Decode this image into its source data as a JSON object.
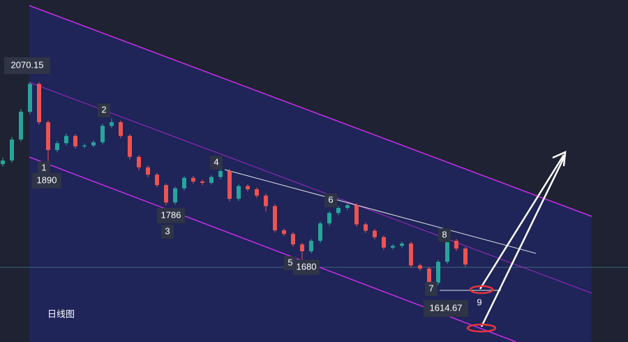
{
  "chart_data": {
    "type": "candlestick",
    "title": "日线图",
    "ylim": [
      1500,
      2250
    ],
    "up_color": "#26a69a",
    "down_color": "#ef5350",
    "open": [
      1890,
      1898,
      1944,
      2005,
      2066,
      1982,
      1921,
      1936,
      1952,
      1929,
      1931,
      1938,
      1974,
      1982,
      1952,
      1906,
      1883,
      1867,
      1844,
      1806,
      1837,
      1860,
      1852,
      1849,
      1862,
      1875,
      1814,
      1842,
      1835,
      1821,
      1798,
      1745,
      1737,
      1714,
      1699,
      1722,
      1760,
      1783,
      1794,
      1800,
      1758,
      1744,
      1730,
      1707,
      1711,
      1716,
      1668,
      1661,
      1630,
      1676,
      1722,
      1705
    ],
    "high": [
      1904,
      1950,
      2011,
      2070.15,
      2070,
      1986,
      1941,
      1957,
      1956,
      1935,
      1942,
      1979,
      1990,
      1986,
      1956,
      1910,
      1887,
      1871,
      1848,
      1841,
      1864,
      1864,
      1856,
      1866,
      1882,
      1879,
      1846,
      1846,
      1839,
      1825,
      1802,
      1749,
      1741,
      1718,
      1726,
      1764,
      1787,
      1798,
      1804,
      1804,
      1762,
      1748,
      1734,
      1714,
      1720,
      1720,
      1672,
      1665,
      1680,
      1726,
      1726,
      1709
    ],
    "low": [
      1884,
      1893,
      1939,
      2000,
      1977,
      1890,
      1916,
      1931,
      1924,
      1925,
      1927,
      1933,
      1969,
      1947,
      1900,
      1877,
      1861,
      1839,
      1800,
      1801,
      1832,
      1847,
      1844,
      1845,
      1857,
      1808,
      1809,
      1830,
      1816,
      1786,
      1740,
      1732,
      1709,
      1680,
      1694,
      1717,
      1755,
      1778,
      1789,
      1753,
      1739,
      1725,
      1702,
      1703,
      1706,
      1663,
      1656,
      1614.67,
      1625,
      1671,
      1700,
      1665
    ],
    "close": [
      1898,
      1944,
      2005,
      2066,
      1982,
      1921,
      1936,
      1952,
      1929,
      1931,
      1938,
      1974,
      1982,
      1952,
      1906,
      1883,
      1867,
      1844,
      1806,
      1837,
      1860,
      1852,
      1849,
      1862,
      1875,
      1814,
      1842,
      1835,
      1821,
      1798,
      1745,
      1737,
      1714,
      1699,
      1722,
      1760,
      1783,
      1794,
      1800,
      1758,
      1744,
      1730,
      1707,
      1711,
      1716,
      1668,
      1661,
      1630,
      1676,
      1722,
      1705,
      1670
    ],
    "wave_labels": [
      "1",
      "2",
      "3",
      "4",
      "5",
      "6",
      "7",
      "8",
      "9"
    ],
    "price_labels": [
      "2070.15",
      "1890",
      "1786",
      "1680",
      "1614.67"
    ]
  }
}
